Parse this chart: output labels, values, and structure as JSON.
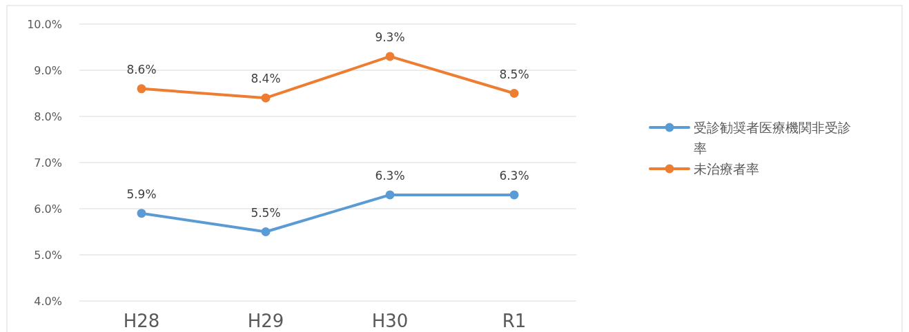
{
  "chart_data": {
    "type": "line",
    "categories": [
      "H28",
      "H29",
      "H30",
      "R1"
    ],
    "series": [
      {
        "name": "受診勧奨者医療機関非受診率",
        "color": "#5b9bd5",
        "values": [
          5.9,
          5.5,
          6.3,
          6.3
        ],
        "value_labels": [
          "5.9%",
          "5.5%",
          "6.3%",
          "6.3%"
        ]
      },
      {
        "name": "未治療者率",
        "color": "#ed7d31",
        "values": [
          8.6,
          8.4,
          9.3,
          8.5
        ],
        "value_labels": [
          "8.6%",
          "8.4%",
          "9.3%",
          "8.5%"
        ]
      }
    ],
    "ylim": [
      4,
      10
    ],
    "yticks": [
      {
        "value": 4,
        "label": "4.0%"
      },
      {
        "value": 5,
        "label": "5.0%"
      },
      {
        "value": 6,
        "label": "6.0%"
      },
      {
        "value": 7,
        "label": "7.0%"
      },
      {
        "value": 8,
        "label": "8.0%"
      },
      {
        "value": 9,
        "label": "9.0%"
      },
      {
        "value": 10,
        "label": "10.0%"
      }
    ],
    "grid": "y",
    "legend": "right",
    "marker": "circle",
    "line_style": "solid"
  }
}
